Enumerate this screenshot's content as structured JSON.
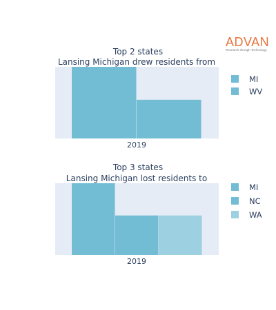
{
  "brand": {
    "name": "ADVAN",
    "tagline": "Research through Technology",
    "color": "#e8743b"
  },
  "colors": {
    "plot_bg": "#e5ecf6",
    "bar_dark": "#72bcd4",
    "bar_light": "#9dd0e0",
    "text": "#2a3f5f"
  },
  "chart_data": [
    {
      "type": "bar",
      "barmode": "group",
      "title_lines": [
        "Top 2 states",
        "Lansing Michigan drew residents from"
      ],
      "categories": [
        "2019"
      ],
      "series": [
        {
          "name": "MI",
          "values": [
            100
          ],
          "color": "#72bcd4"
        },
        {
          "name": "WV",
          "values": [
            54
          ],
          "color": "#72bcd4"
        }
      ],
      "ylim": [
        0,
        100
      ],
      "xlabel": "",
      "ylabel": "",
      "yaxis_ticks_visible": false,
      "grid": false,
      "legend": "right"
    },
    {
      "type": "bar",
      "barmode": "group",
      "title_lines": [
        "Top 3 states",
        "Lansing Michigan lost residents to"
      ],
      "categories": [
        "2019"
      ],
      "series": [
        {
          "name": "MI",
          "values": [
            100
          ],
          "color": "#72bcd4"
        },
        {
          "name": "NC",
          "values": [
            55
          ],
          "color": "#72bcd4"
        },
        {
          "name": "WA",
          "values": [
            55
          ],
          "color": "#9dd0e0"
        }
      ],
      "ylim": [
        0,
        100
      ],
      "xlabel": "",
      "ylabel": "",
      "yaxis_ticks_visible": false,
      "grid": false,
      "legend": "right"
    }
  ]
}
